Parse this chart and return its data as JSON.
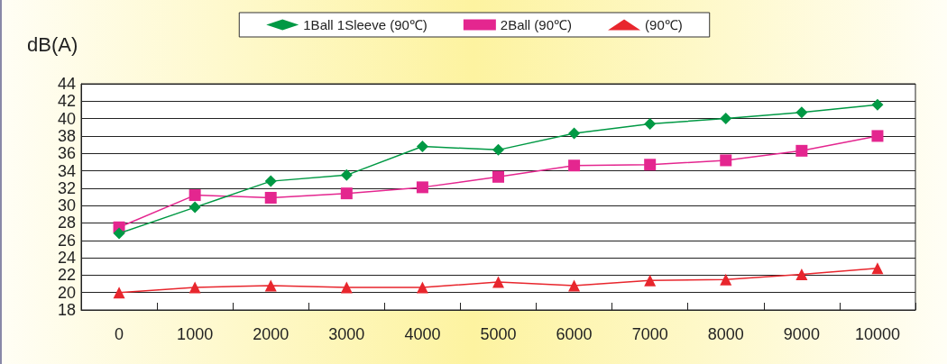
{
  "chart_data": {
    "type": "line",
    "ylabel": "dB(A)",
    "categories": [
      "0",
      "1000",
      "2000",
      "3000",
      "4000",
      "5000",
      "6000",
      "7000",
      "8000",
      "9000",
      "10000"
    ],
    "series": [
      {
        "name": "1Ball 1Sleeve (90℃)",
        "color": "#009944",
        "marker": "diamond",
        "values": [
          26.8,
          29.8,
          32.8,
          33.5,
          36.8,
          36.4,
          38.3,
          39.4,
          40.0,
          40.7,
          41.6
        ]
      },
      {
        "name": "2Ball (90℃)",
        "color": "#e4268f",
        "marker": "square",
        "values": [
          27.5,
          31.2,
          30.9,
          31.4,
          32.1,
          33.3,
          34.6,
          34.7,
          35.2,
          36.3,
          38.0
        ]
      },
      {
        "name": "(90℃)",
        "color": "#e8262d",
        "marker": "triangle",
        "values": [
          20.0,
          20.6,
          20.8,
          20.6,
          20.6,
          21.2,
          20.8,
          21.4,
          21.5,
          22.1,
          22.8
        ]
      }
    ],
    "ylim": [
      18,
      44
    ],
    "yticks": [
      18,
      20,
      22,
      24,
      26,
      28,
      30,
      32,
      34,
      36,
      38,
      40,
      42,
      44
    ],
    "grid": "y",
    "legend": "top",
    "line_style": "solid"
  }
}
